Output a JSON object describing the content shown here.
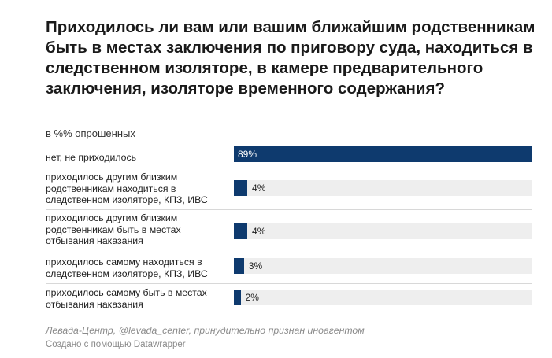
{
  "title": "Приходилось ли вам или вашим ближайшим родственникам быть в местах заключения по приговору суда, находиться в следственном изоляторе, в камере предварительного заключения, изоляторе временного содержания?",
  "subtitle": "в %% опрошенных",
  "source": "Левада-Центр, @levada_center, принудительно признан иноагентом",
  "credit": "Создано с помощью Datawrapper",
  "colors": {
    "bar": "#0e3a6e",
    "track": "#eeeeee"
  },
  "chart_data": {
    "type": "bar",
    "orientation": "horizontal",
    "categories": [
      "нет, не приходилось",
      "приходилось другим близким родственникам находиться в следственном изоляторе, КПЗ, ИВС",
      "приходилось другим близким родственникам быть в местах отбывания наказания",
      "приходилось самому находиться в следственном изоляторе, КПЗ, ИВС",
      "приходилось самому быть в местах отбывания наказания"
    ],
    "values": [
      89,
      4,
      4,
      3,
      2
    ],
    "value_labels": [
      "89%",
      "4%",
      "4%",
      "3%",
      "2%"
    ],
    "xlim": [
      0,
      89
    ],
    "grid": false,
    "legend": "none"
  }
}
